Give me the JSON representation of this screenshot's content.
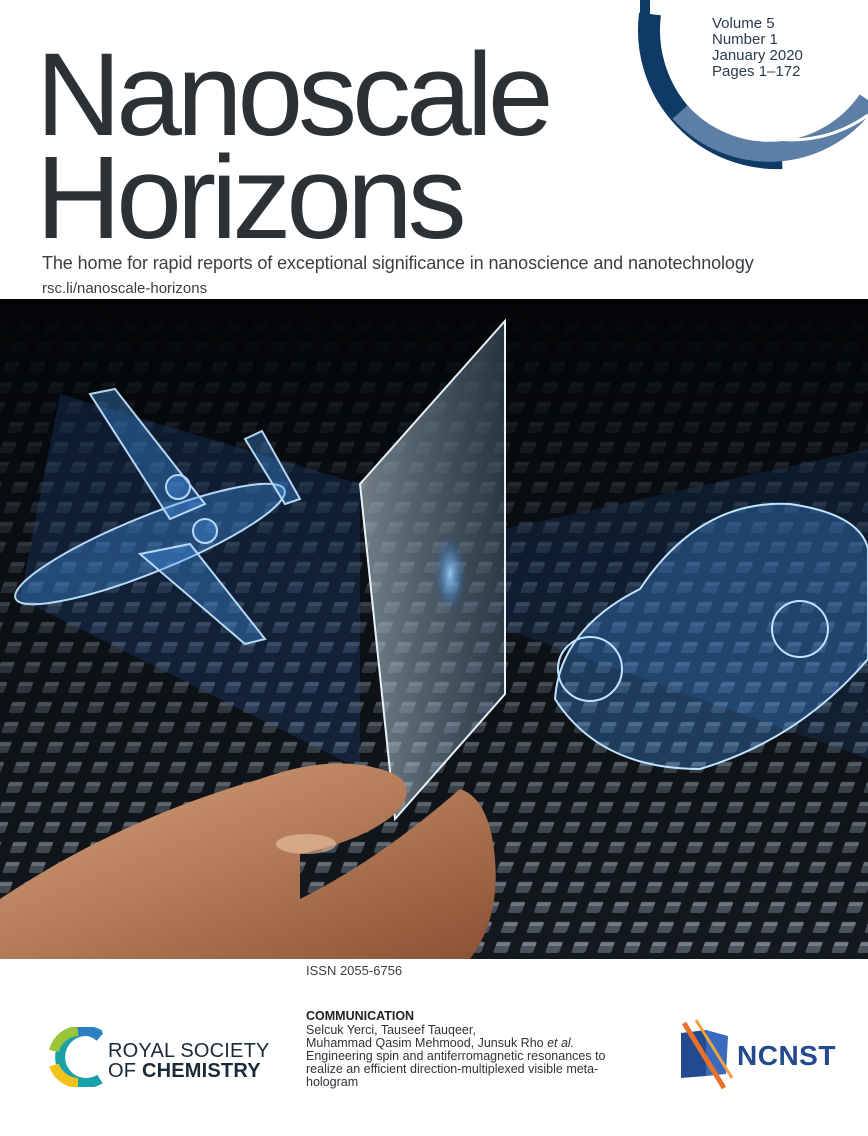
{
  "journal": {
    "title_line1": "Nanoscale",
    "title_line2": "Horizons",
    "tagline": "The home for rapid reports of exceptional significance in nanoscience and nanotechnology",
    "url": "rsc.li/nanoscale-horizons"
  },
  "issue": {
    "volume": "Volume 5",
    "number": "Number 1",
    "date": "January 2020",
    "pages": "Pages 1–172"
  },
  "cover_image": {
    "description_icon": "hologram-metasurface-image"
  },
  "issn": "ISSN 2055-6756",
  "publisher": {
    "line1": "ROYAL SOCIETY",
    "line2_prefix": "OF ",
    "line2_bold": "CHEMISTRY"
  },
  "article": {
    "type": "COMMUNICATION",
    "authors_line1": "Selcuk Yerci, Tauseef Tauqeer,",
    "authors_line2_plain": "Muhammad Qasim Mehmood, Junsuk Rho ",
    "authors_line2_italic": "et al.",
    "title": "Engineering spin and antiferromagnetic resonances to realize an efficient direction-multiplexed visible meta-hologram"
  },
  "partner": {
    "name": "NCNST"
  },
  "colors": {
    "title": "#2c3136",
    "arc_dark": "#0f3a66",
    "arc_light": "#5d7fa6",
    "ncnst_blue": "#234a8f",
    "rsc_green": "#9ac43a",
    "rsc_teal": "#1aa0a8",
    "rsc_yellow": "#f2c21b"
  }
}
